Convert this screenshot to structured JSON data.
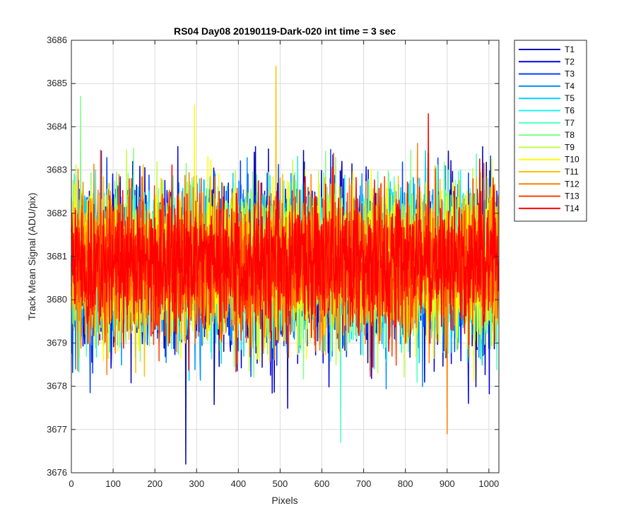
{
  "chart_data": {
    "type": "line",
    "title": "RS04 Day08 20190119-Dark-020 int time = 3 sec",
    "xlabel": "Pixels",
    "ylabel": "Track Mean Signal (ADU/pix)",
    "xlim": [
      0,
      1024
    ],
    "ylim": [
      3676,
      3686
    ],
    "xticks": [
      0,
      100,
      200,
      300,
      400,
      500,
      600,
      700,
      800,
      900,
      1000
    ],
    "yticks": [
      3676,
      3677,
      3678,
      3679,
      3680,
      3681,
      3682,
      3683,
      3684,
      3685,
      3686
    ],
    "grid": true,
    "legend_position": "outside-top-right",
    "series": [
      {
        "name": "T1",
        "color": "#0000b4",
        "mean": 3680.75,
        "spread": 1.05
      },
      {
        "name": "T2",
        "color": "#0000e6",
        "mean": 3680.75,
        "spread": 1.0
      },
      {
        "name": "T3",
        "color": "#0040ff",
        "mean": 3680.8,
        "spread": 0.95
      },
      {
        "name": "T4",
        "color": "#0090ff",
        "mean": 3680.8,
        "spread": 0.95
      },
      {
        "name": "T5",
        "color": "#00d0ff",
        "mean": 3680.85,
        "spread": 0.95
      },
      {
        "name": "T6",
        "color": "#20f0f0",
        "mean": 3680.85,
        "spread": 0.95
      },
      {
        "name": "T7",
        "color": "#50ffc0",
        "mean": 3680.85,
        "spread": 0.95
      },
      {
        "name": "T8",
        "color": "#80ff80",
        "mean": 3680.85,
        "spread": 0.95
      },
      {
        "name": "T9",
        "color": "#c0ff40",
        "mean": 3680.85,
        "spread": 0.95
      },
      {
        "name": "T10",
        "color": "#ffff00",
        "mean": 3680.85,
        "spread": 0.95
      },
      {
        "name": "T11",
        "color": "#ffc000",
        "mean": 3680.85,
        "spread": 0.9
      },
      {
        "name": "T12",
        "color": "#ff8000",
        "mean": 3680.85,
        "spread": 0.9
      },
      {
        "name": "T13",
        "color": "#ff4000",
        "mean": 3680.85,
        "spread": 0.85
      },
      {
        "name": "T14",
        "color": "#ff0000",
        "mean": 3680.9,
        "spread": 0.85
      }
    ],
    "notable_points": [
      {
        "series": "T11",
        "x": 490,
        "y": 3685.4
      },
      {
        "series": "T1",
        "x": 274,
        "y": 3676.2
      },
      {
        "series": "T7",
        "x": 645,
        "y": 3676.7
      },
      {
        "series": "T12",
        "x": 900,
        "y": 3676.9
      },
      {
        "series": "T10",
        "x": 295,
        "y": 3684.5
      },
      {
        "series": "T14",
        "x": 855,
        "y": 3684.3
      },
      {
        "series": "T8",
        "x": 22,
        "y": 3684.7
      }
    ]
  }
}
